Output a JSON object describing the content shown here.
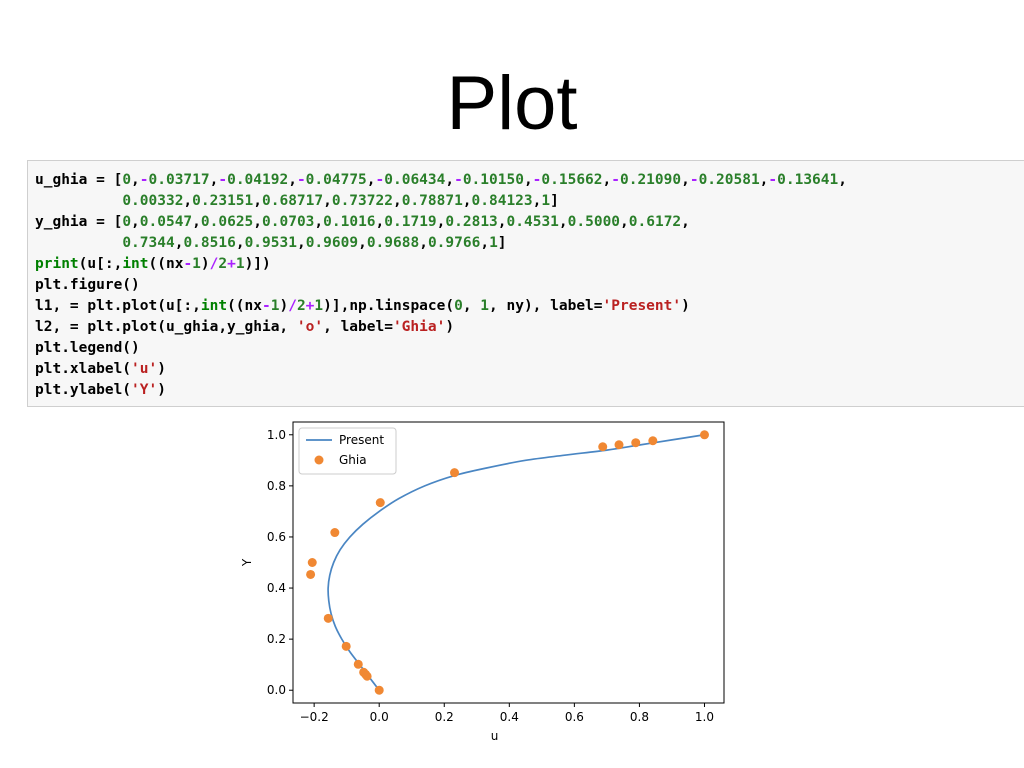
{
  "slide": {
    "title": "Plot"
  },
  "code_cell": {
    "lines": [
      [
        [
          "t",
          "u_ghia = ["
        ],
        [
          "n",
          "0"
        ],
        [
          "t",
          ","
        ],
        [
          "o",
          "-"
        ],
        [
          "n",
          "0.03717"
        ],
        [
          "t",
          ","
        ],
        [
          "o",
          "-"
        ],
        [
          "n",
          "0.04192"
        ],
        [
          "t",
          ","
        ],
        [
          "o",
          "-"
        ],
        [
          "n",
          "0.04775"
        ],
        [
          "t",
          ","
        ],
        [
          "o",
          "-"
        ],
        [
          "n",
          "0.06434"
        ],
        [
          "t",
          ","
        ],
        [
          "o",
          "-"
        ],
        [
          "n",
          "0.10150"
        ],
        [
          "t",
          ","
        ],
        [
          "o",
          "-"
        ],
        [
          "n",
          "0.15662"
        ],
        [
          "t",
          ","
        ],
        [
          "o",
          "-"
        ],
        [
          "n",
          "0.21090"
        ],
        [
          "t",
          ","
        ],
        [
          "o",
          "-"
        ],
        [
          "n",
          "0.20581"
        ],
        [
          "t",
          ","
        ],
        [
          "o",
          "-"
        ],
        [
          "n",
          "0.13641"
        ],
        [
          "t",
          ","
        ]
      ],
      [
        [
          "t",
          "          "
        ],
        [
          "n",
          "0.00332"
        ],
        [
          "t",
          ","
        ],
        [
          "n",
          "0.23151"
        ],
        [
          "t",
          ","
        ],
        [
          "n",
          "0.68717"
        ],
        [
          "t",
          ","
        ],
        [
          "n",
          "0.73722"
        ],
        [
          "t",
          ","
        ],
        [
          "n",
          "0.78871"
        ],
        [
          "t",
          ","
        ],
        [
          "n",
          "0.84123"
        ],
        [
          "t",
          ","
        ],
        [
          "n",
          "1"
        ],
        [
          "t",
          "]"
        ]
      ],
      [
        [
          "t",
          "y_ghia = ["
        ],
        [
          "n",
          "0"
        ],
        [
          "t",
          ","
        ],
        [
          "n",
          "0.0547"
        ],
        [
          "t",
          ","
        ],
        [
          "n",
          "0.0625"
        ],
        [
          "t",
          ","
        ],
        [
          "n",
          "0.0703"
        ],
        [
          "t",
          ","
        ],
        [
          "n",
          "0.1016"
        ],
        [
          "t",
          ","
        ],
        [
          "n",
          "0.1719"
        ],
        [
          "t",
          ","
        ],
        [
          "n",
          "0.2813"
        ],
        [
          "t",
          ","
        ],
        [
          "n",
          "0.4531"
        ],
        [
          "t",
          ","
        ],
        [
          "n",
          "0.5000"
        ],
        [
          "t",
          ","
        ],
        [
          "n",
          "0.6172"
        ],
        [
          "t",
          ","
        ]
      ],
      [
        [
          "t",
          "          "
        ],
        [
          "n",
          "0.7344"
        ],
        [
          "t",
          ","
        ],
        [
          "n",
          "0.8516"
        ],
        [
          "t",
          ","
        ],
        [
          "n",
          "0.9531"
        ],
        [
          "t",
          ","
        ],
        [
          "n",
          "0.9609"
        ],
        [
          "t",
          ","
        ],
        [
          "n",
          "0.9688"
        ],
        [
          "t",
          ","
        ],
        [
          "n",
          "0.9766"
        ],
        [
          "t",
          ","
        ],
        [
          "n",
          "1"
        ],
        [
          "t",
          "]"
        ]
      ],
      [
        [
          "b",
          "print"
        ],
        [
          "t",
          "(u[:,"
        ],
        [
          "b",
          "int"
        ],
        [
          "t",
          "((nx"
        ],
        [
          "o",
          "-"
        ],
        [
          "n",
          "1"
        ],
        [
          "t",
          ")"
        ],
        [
          "o",
          "/"
        ],
        [
          "n",
          "2"
        ],
        [
          "o",
          "+"
        ],
        [
          "n",
          "1"
        ],
        [
          "t",
          ")])"
        ]
      ],
      [
        [
          "t",
          "plt.figure()"
        ]
      ],
      [
        [
          "t",
          "l1, = plt.plot(u[:,"
        ],
        [
          "b",
          "int"
        ],
        [
          "t",
          "((nx"
        ],
        [
          "o",
          "-"
        ],
        [
          "n",
          "1"
        ],
        [
          "t",
          ")"
        ],
        [
          "o",
          "/"
        ],
        [
          "n",
          "2"
        ],
        [
          "o",
          "+"
        ],
        [
          "n",
          "1"
        ],
        [
          "t",
          ")],np.linspace("
        ],
        [
          "n",
          "0"
        ],
        [
          "t",
          ", "
        ],
        [
          "n",
          "1"
        ],
        [
          "t",
          ", ny), label="
        ],
        [
          "s",
          "'Present'"
        ],
        [
          "t",
          ")"
        ]
      ],
      [
        [
          "t",
          "l2, = plt.plot(u_ghia,y_ghia, "
        ],
        [
          "s",
          "'o'"
        ],
        [
          "t",
          ", label="
        ],
        [
          "s",
          "'Ghia'"
        ],
        [
          "t",
          ")"
        ]
      ],
      [
        [
          "t",
          "plt.legend()"
        ]
      ],
      [
        [
          "t",
          "plt.xlabel("
        ],
        [
          "s",
          "'u'"
        ],
        [
          "t",
          ")"
        ]
      ],
      [
        [
          "t",
          "plt.ylabel("
        ],
        [
          "s",
          "'Y'"
        ],
        [
          "t",
          ")"
        ]
      ]
    ]
  },
  "colors": {
    "present": "#4a86c3",
    "ghia": "#f08833",
    "number": "#2a7f2a",
    "operator": "#aa22ff",
    "string": "#ba2121"
  },
  "chart_data": {
    "type": "line",
    "title": "",
    "xlabel": "u",
    "ylabel": "Y",
    "xlim": [
      -0.265,
      1.06
    ],
    "ylim": [
      -0.05,
      1.05
    ],
    "xticks": [
      -0.2,
      0.0,
      0.2,
      0.4,
      0.6,
      0.8,
      1.0
    ],
    "xtick_labels": [
      "−0.2",
      "0.0",
      "0.2",
      "0.4",
      "0.6",
      "0.8",
      "1.0"
    ],
    "yticks": [
      0.0,
      0.2,
      0.4,
      0.6,
      0.8,
      1.0
    ],
    "ytick_labels": [
      "0.0",
      "0.2",
      "0.4",
      "0.6",
      "0.8",
      "1.0"
    ],
    "grid": false,
    "legend": "top-left",
    "series": [
      {
        "name": "Present",
        "style": "line",
        "x": [
          0.0,
          -0.03,
          -0.06,
          -0.09,
          -0.115,
          -0.135,
          -0.148,
          -0.155,
          -0.157,
          -0.152,
          -0.14,
          -0.12,
          -0.09,
          -0.05,
          0.0,
          0.06,
          0.14,
          0.23,
          0.33,
          0.45,
          0.57,
          0.7,
          0.8,
          0.9,
          1.0
        ],
        "y": [
          0.0,
          0.05,
          0.1,
          0.15,
          0.2,
          0.25,
          0.3,
          0.35,
          0.4,
          0.45,
          0.5,
          0.55,
          0.6,
          0.65,
          0.7,
          0.75,
          0.8,
          0.84,
          0.87,
          0.9,
          0.92,
          0.94,
          0.96,
          0.98,
          1.0
        ]
      },
      {
        "name": "Ghia",
        "style": "marker",
        "x": [
          0,
          -0.03717,
          -0.04192,
          -0.04775,
          -0.06434,
          -0.1015,
          -0.15662,
          -0.2109,
          -0.20581,
          -0.13641,
          0.00332,
          0.23151,
          0.68717,
          0.73722,
          0.78871,
          0.84123,
          1
        ],
        "y": [
          0,
          0.0547,
          0.0625,
          0.0703,
          0.1016,
          0.1719,
          0.2813,
          0.4531,
          0.5,
          0.6172,
          0.7344,
          0.8516,
          0.9531,
          0.9609,
          0.9688,
          0.9766,
          1
        ]
      }
    ]
  }
}
